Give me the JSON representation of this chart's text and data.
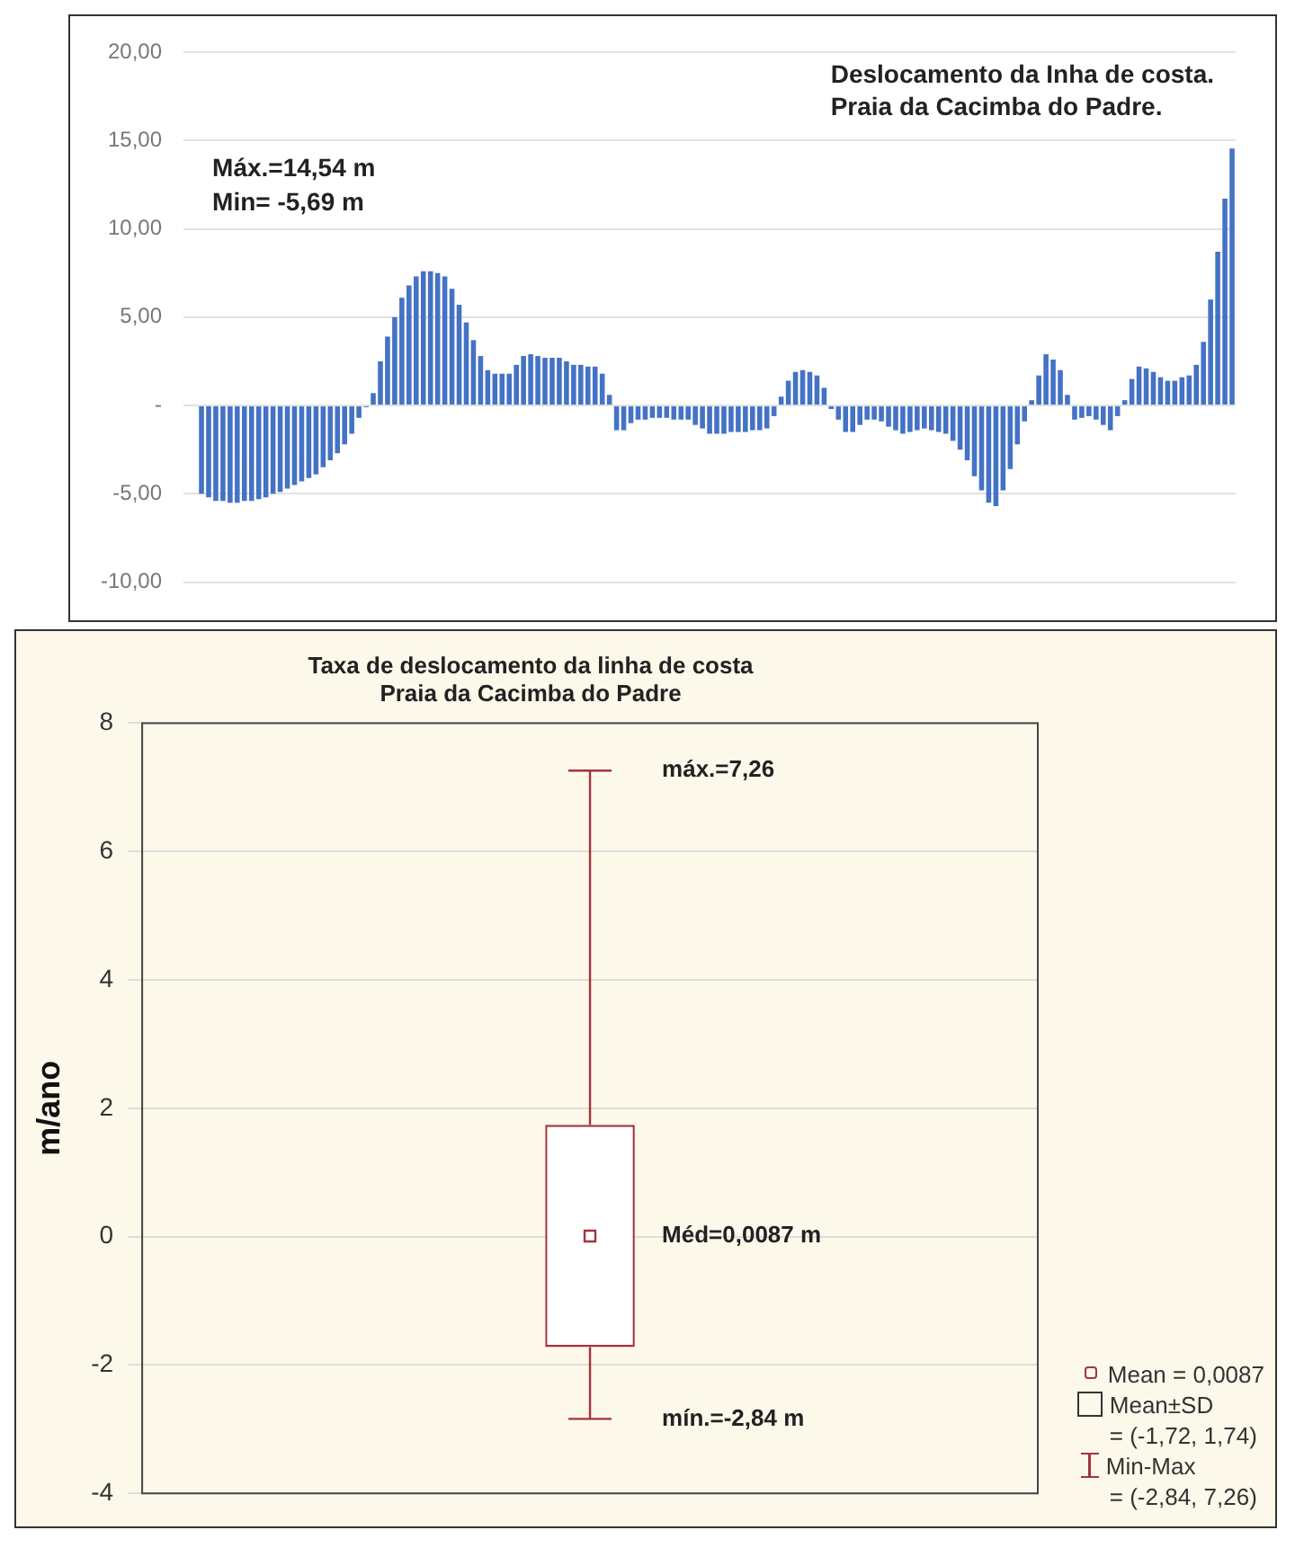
{
  "chart_data": [
    {
      "type": "bar",
      "title": "Deslocamento da Inha de costa.",
      "subtitle": "Praia da Cacimba do Padre.",
      "annotations": [
        "Máx.=14,54 m",
        "Min= -5,69 m"
      ],
      "categories": [
        null,
        null,
        null,
        null,
        null,
        null,
        null,
        null,
        null,
        null,
        null,
        null,
        null,
        null,
        null,
        null,
        null,
        null,
        null,
        null,
        null,
        null,
        null,
        null,
        null,
        null,
        null,
        null,
        null,
        null,
        null,
        null,
        null,
        null,
        null,
        null,
        null,
        null,
        null,
        null,
        null,
        null,
        null,
        null,
        null,
        null,
        null,
        null,
        null,
        null,
        null,
        null,
        null,
        null,
        null,
        null,
        null,
        null,
        null,
        null,
        null,
        null,
        null,
        null,
        null,
        null,
        null,
        null,
        null,
        null,
        null,
        null,
        null,
        null,
        null,
        null,
        null,
        null,
        null,
        null,
        null,
        null,
        null,
        null,
        null,
        null,
        null,
        null,
        null,
        null,
        null,
        null,
        null,
        null,
        null,
        null,
        null,
        null,
        null,
        null,
        null,
        null,
        null,
        null,
        null,
        null,
        null,
        null,
        null,
        null,
        null,
        null,
        null,
        null,
        null,
        null,
        null,
        null,
        null,
        null,
        null,
        null,
        null,
        null,
        null,
        null,
        null,
        null,
        null,
        null,
        null,
        null,
        null,
        null,
        null,
        null,
        null,
        null,
        null,
        null,
        null,
        null,
        null,
        null,
        null
      ],
      "values": [
        -5.0,
        -5.2,
        -5.4,
        -5.4,
        -5.5,
        -5.5,
        -5.4,
        -5.4,
        -5.3,
        -5.2,
        -5.0,
        -4.9,
        -4.7,
        -4.5,
        -4.3,
        -4.1,
        -3.9,
        -3.5,
        -3.1,
        -2.7,
        -2.2,
        -1.6,
        -0.7,
        -0.1,
        0.7,
        2.5,
        3.9,
        5.0,
        6.1,
        6.8,
        7.3,
        7.6,
        7.6,
        7.5,
        7.3,
        6.6,
        5.7,
        4.7,
        3.7,
        2.8,
        2.0,
        1.8,
        1.8,
        1.8,
        2.3,
        2.8,
        2.9,
        2.8,
        2.7,
        2.7,
        2.7,
        2.5,
        2.3,
        2.3,
        2.2,
        2.2,
        1.8,
        0.6,
        -1.4,
        -1.4,
        -1.0,
        -0.8,
        -0.8,
        -0.7,
        -0.7,
        -0.7,
        -0.8,
        -0.8,
        -0.8,
        -1.1,
        -1.3,
        -1.6,
        -1.6,
        -1.6,
        -1.5,
        -1.5,
        -1.5,
        -1.4,
        -1.4,
        -1.3,
        -0.6,
        0.5,
        1.4,
        1.9,
        2.0,
        1.9,
        1.7,
        1.0,
        -0.2,
        -0.8,
        -1.5,
        -1.5,
        -1.1,
        -0.8,
        -0.8,
        -0.9,
        -1.2,
        -1.4,
        -1.6,
        -1.5,
        -1.4,
        -1.3,
        -1.4,
        -1.5,
        -1.6,
        -2.0,
        -2.5,
        -3.1,
        -4.0,
        -4.8,
        -5.5,
        -5.69,
        -4.8,
        -3.6,
        -2.2,
        -0.9,
        0.3,
        1.7,
        2.9,
        2.6,
        2.0,
        0.6,
        -0.8,
        -0.7,
        -0.6,
        -0.8,
        -1.1,
        -1.4,
        -0.6,
        0.3,
        1.5,
        2.2,
        2.1,
        1.9,
        1.6,
        1.4,
        1.4,
        1.6,
        1.7,
        2.3,
        3.6,
        6.0,
        8.7,
        11.7,
        14.54
      ],
      "color": "#4472c4",
      "ylim": [
        -10,
        20
      ],
      "yticks": [
        {
          "value": -10,
          "label": "-10,00"
        },
        {
          "value": -5,
          "label": "-5,00"
        },
        {
          "value": 0,
          "label": "-"
        },
        {
          "value": 5,
          "label": "5,00"
        },
        {
          "value": 10,
          "label": "10,00"
        },
        {
          "value": 15,
          "label": "15,00"
        },
        {
          "value": 20,
          "label": "20,00"
        }
      ],
      "grid": "y",
      "tick_labels": "y"
    },
    {
      "type": "box",
      "title": "Taxa de deslocamento da linha de costa",
      "subtitle": "Praia da Cacimba do Padre",
      "ylabel": "m/ano",
      "categories": [
        null
      ],
      "boxes": [
        {
          "low": -2.84,
          "q1": -1.72,
          "median": 0.0087,
          "q3": 1.74,
          "high": 7.26
        }
      ],
      "color": "#a3343f",
      "ylim": [
        -4,
        8
      ],
      "yticks": [
        -4,
        -2,
        0,
        2,
        4,
        6,
        8
      ],
      "grid": "y",
      "tick_labels": "y",
      "annotations": [
        "máx.=7,26",
        "Méd=0,0087 m",
        "mín.=-2,84 m",
        "Mean = 0,0087",
        "Mean±SD\n= (-1,72, 1,74)",
        "Min-Max\n= (-2,84, 7,26)"
      ]
    }
  ]
}
